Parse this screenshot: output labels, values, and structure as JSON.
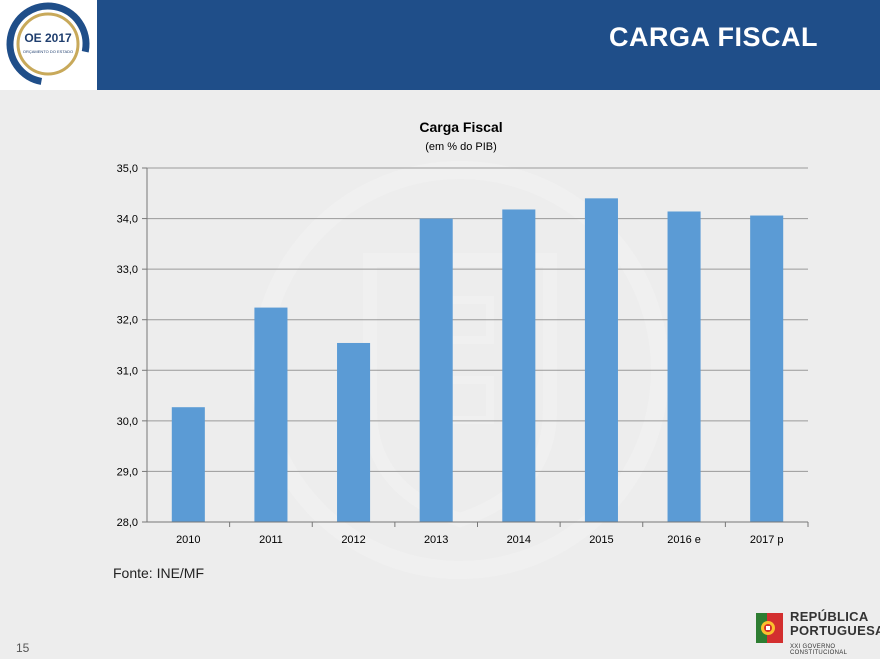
{
  "header": {
    "title": "CARGA FISCAL",
    "logo_text": "OE 2017",
    "logo_subtext": "ORÇAMENTO DO ESTADO",
    "background_color": "#1f4e89"
  },
  "chart_data": {
    "type": "bar",
    "title": "Carga Fiscal",
    "subtitle": "(em % do PIB)",
    "categories": [
      "2010",
      "2011",
      "2012",
      "2013",
      "2014",
      "2015",
      "2016 e",
      "2017 p"
    ],
    "values": [
      30.27,
      32.24,
      31.54,
      34.0,
      34.18,
      34.4,
      34.14,
      34.06
    ],
    "ylim": [
      28,
      35
    ],
    "yticks": [
      "28,0",
      "29,0",
      "30,0",
      "31,0",
      "32,0",
      "33,0",
      "34,0",
      "35,0"
    ],
    "xlabel": "",
    "ylabel": "",
    "grid": true,
    "bar_color": "#5b9bd5"
  },
  "footer": {
    "source": "Fonte: INE/MF",
    "page_number": "15",
    "brand_line1": "REPÚBLICA",
    "brand_line2": "PORTUGUESA",
    "brand_line3": "XXI GOVERNO CONSTITUCIONAL"
  }
}
